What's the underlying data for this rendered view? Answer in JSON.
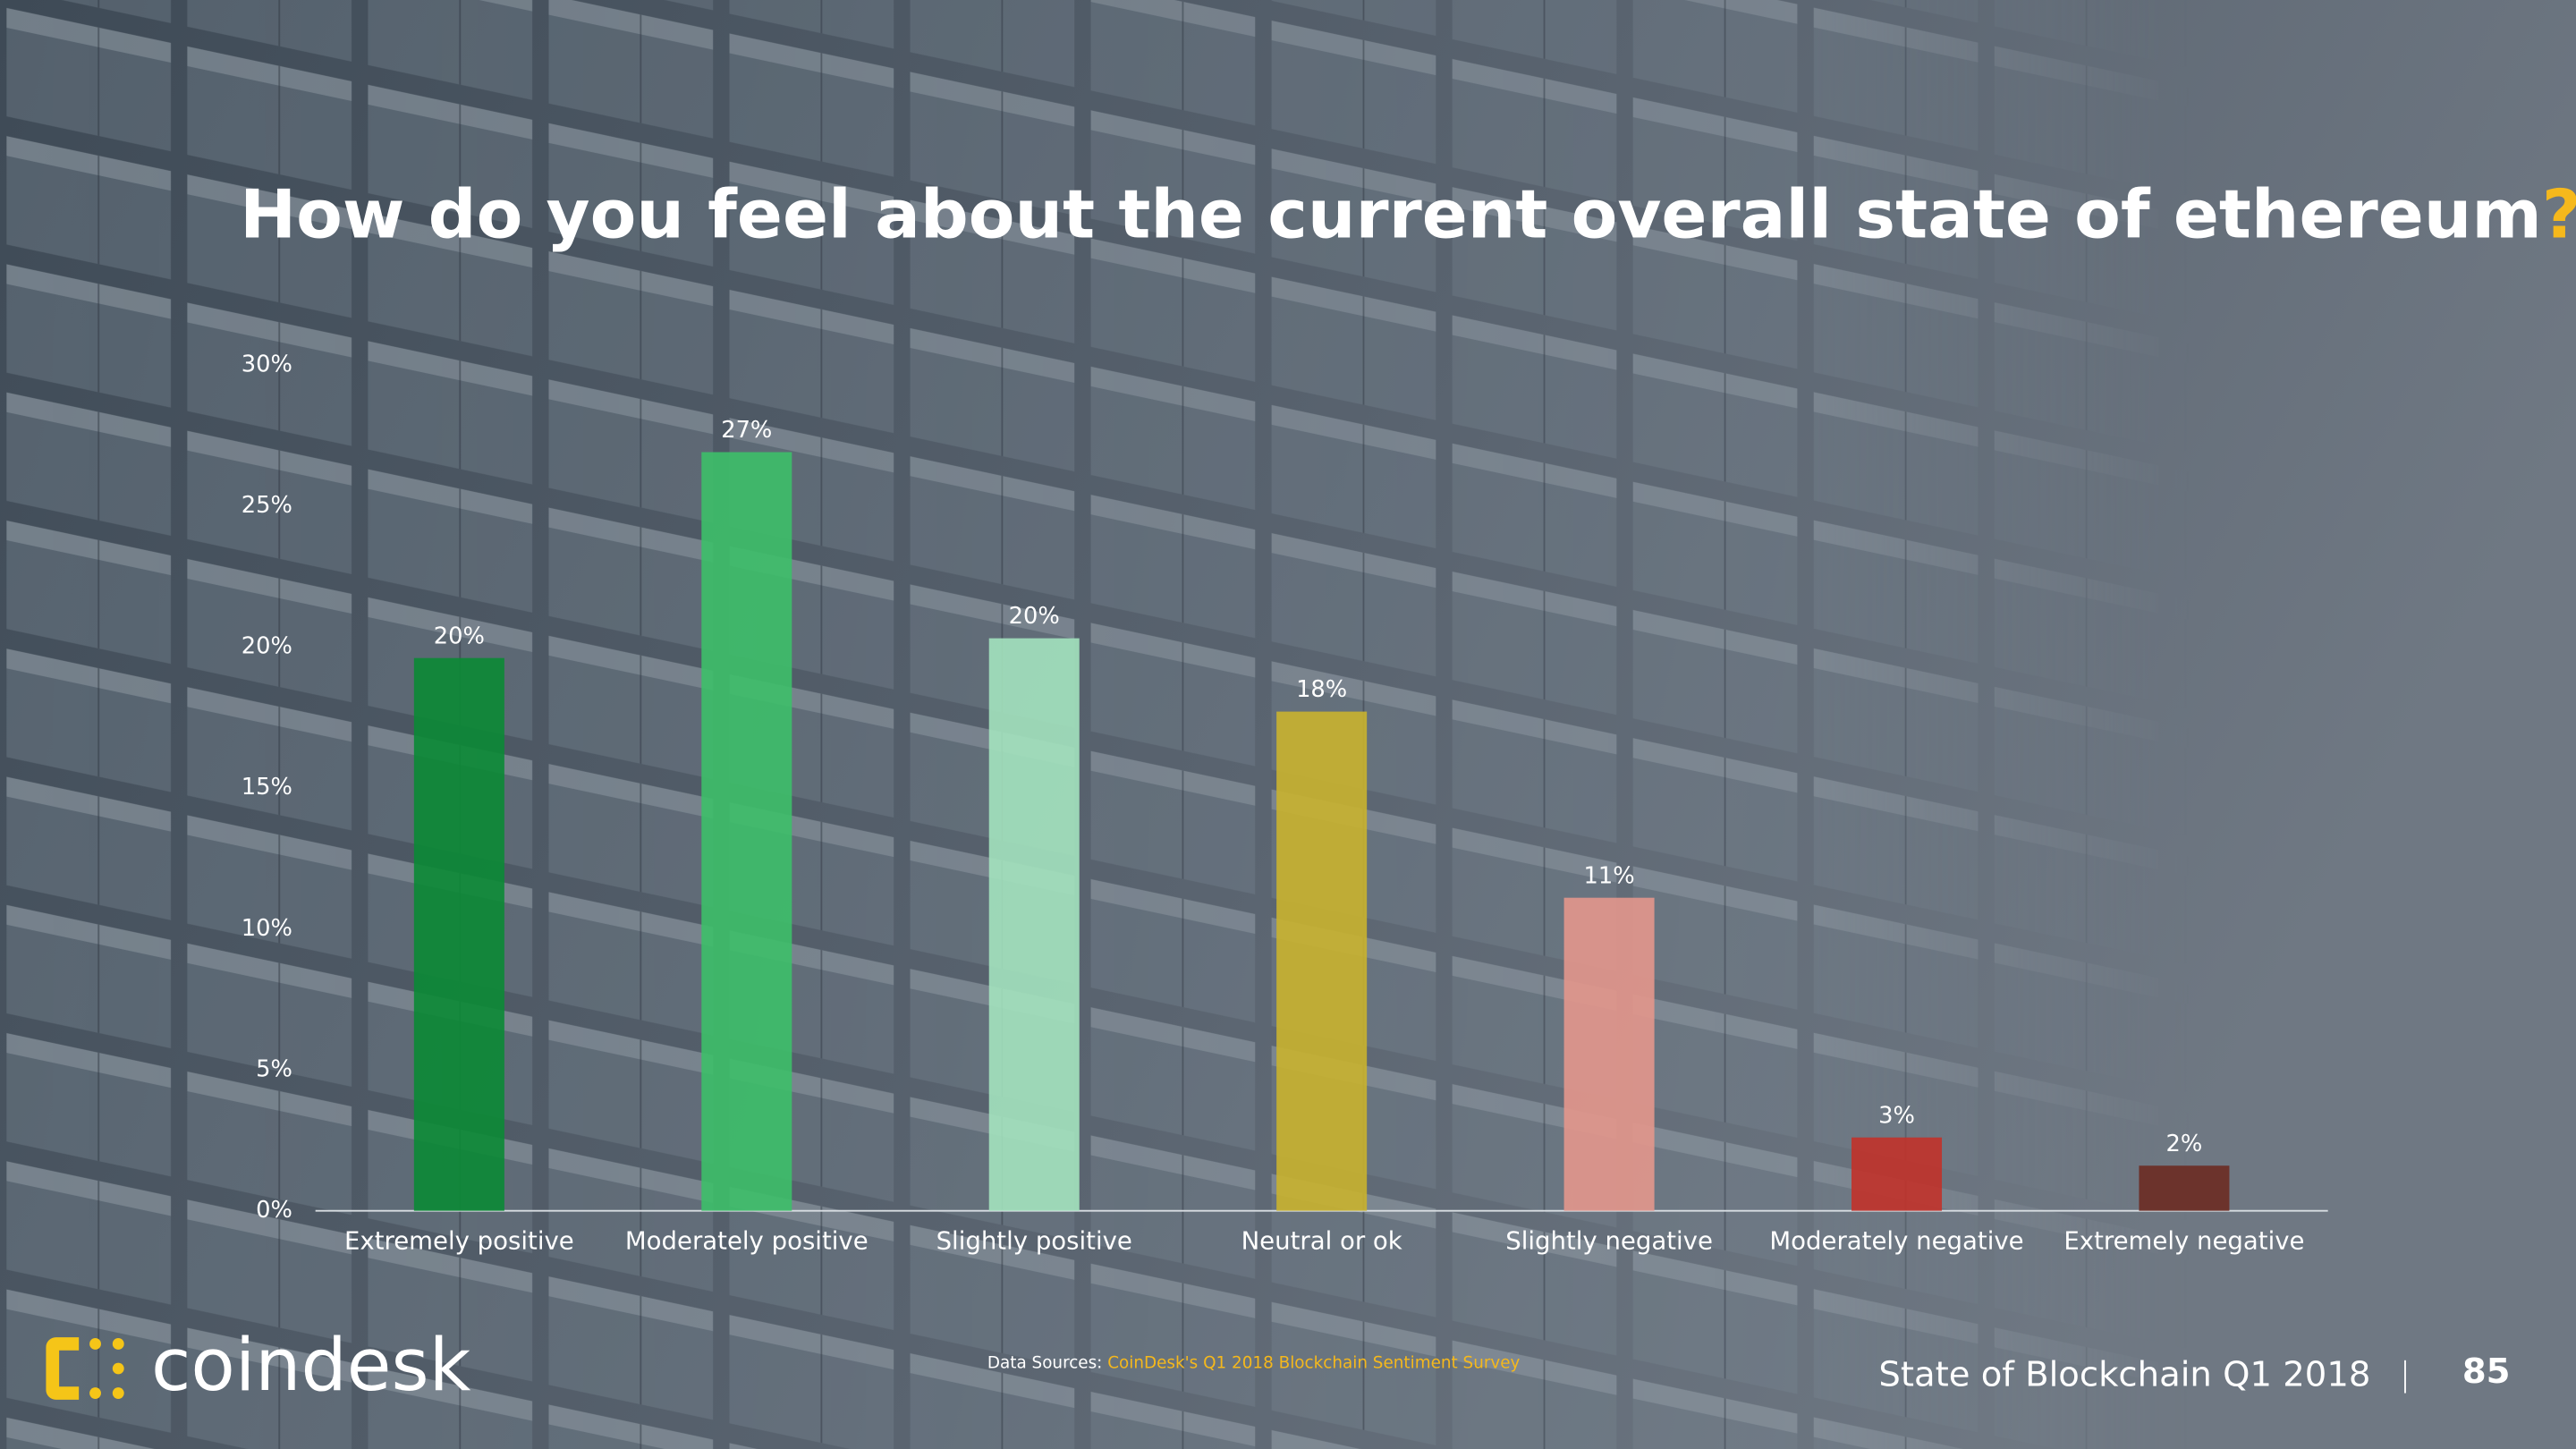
{
  "chart_data": {
    "type": "bar",
    "title": "How do you feel about the current overall state of ethereum",
    "title_mark": "?",
    "categories": [
      "Extremely positive",
      "Moderately positive",
      "Slightly positive",
      "Neutral or ok",
      "Slightly negative",
      "Moderately negative",
      "Extremely negative"
    ],
    "values": [
      19.6,
      26.9,
      20.3,
      17.7,
      11.1,
      2.6,
      1.6
    ],
    "value_labels": [
      "20%",
      "27%",
      "20%",
      "18%",
      "11%",
      "3%",
      "2%"
    ],
    "colors": [
      "#0b8a35",
      "#3dbf69",
      "#a3e2be",
      "#c9b22f",
      "#e3978c",
      "#c1322a",
      "#6c2b22"
    ],
    "ylim": [
      0,
      30
    ],
    "yticks": [
      {
        "value": 0,
        "label": "0%"
      },
      {
        "value": 5,
        "label": "5%"
      },
      {
        "value": 10,
        "label": "10%"
      },
      {
        "value": 15,
        "label": "15%"
      },
      {
        "value": 20,
        "label": "20%"
      },
      {
        "value": 25,
        "label": "25%"
      },
      {
        "value": 30,
        "label": "30%"
      }
    ],
    "grid": false
  },
  "footer": {
    "logo": "coindesk",
    "source_label": "Data Sources:",
    "source": "CoinDesk's Q1 2018 Blockchain Sentiment Survey",
    "report": "State of Blockchain Q1 2018",
    "page": "85"
  }
}
